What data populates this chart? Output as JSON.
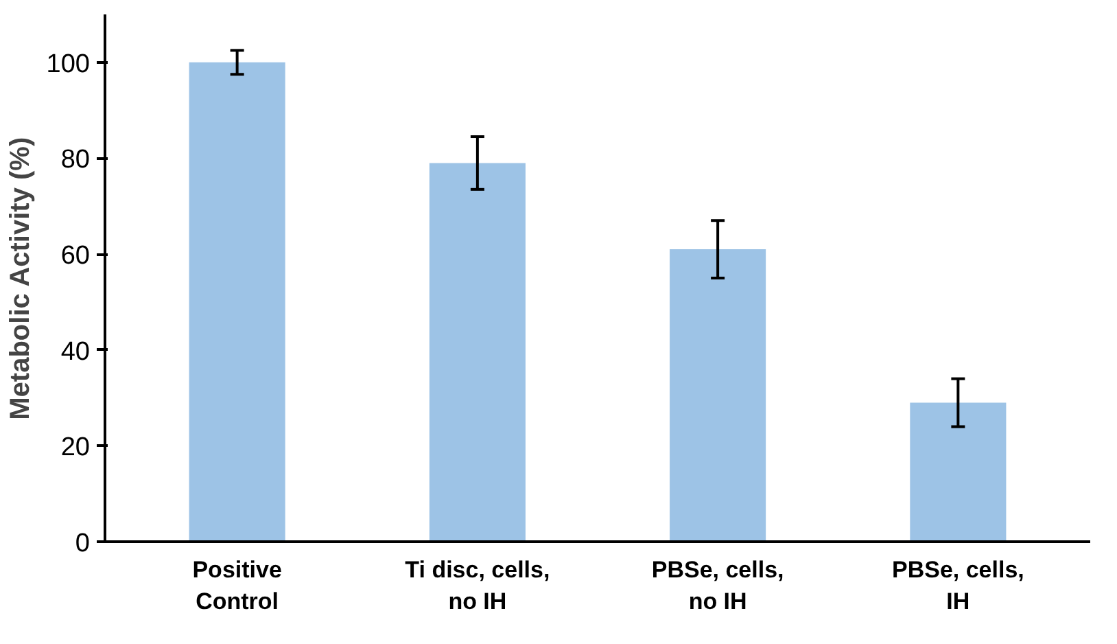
{
  "chart_data": {
    "type": "bar",
    "ylabel": "Metabolic Activity (%)",
    "categories": [
      "Positive\nControl",
      "Ti disc, cells,\nno IH",
      "PBSe, cells,\nno IH",
      "PBSe, cells,\nIH"
    ],
    "values": [
      100,
      79,
      61,
      29
    ],
    "errors": [
      2.5,
      5.5,
      6,
      5
    ],
    "color": "#9dc3e6",
    "ylim": [
      0,
      110
    ],
    "yticks": [
      0,
      20,
      40,
      60,
      80,
      100
    ],
    "grid": false
  }
}
